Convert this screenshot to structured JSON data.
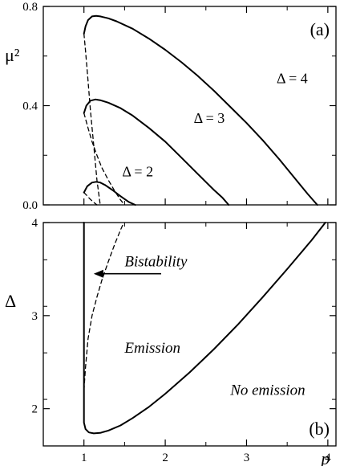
{
  "chart_data": [
    {
      "type": "line",
      "panel_label": "(a)",
      "xlim": [
        0.5,
        4.1
      ],
      "ylim": [
        0,
        0.8
      ],
      "ylabel": "μ²",
      "xlabel": "",
      "yticks": [
        {
          "value": 0.0,
          "label": "0.0"
        },
        {
          "value": 0.4,
          "label": "0.4"
        },
        {
          "value": 0.8,
          "label": "0.8"
        }
      ],
      "xticks": [
        1,
        2,
        3,
        4
      ],
      "minor_y_step": 0.2,
      "annotations": [
        {
          "text": "Δ = 2",
          "x": 1.47,
          "y": 0.115
        },
        {
          "text": "Δ = 3",
          "x": 2.35,
          "y": 0.33
        },
        {
          "text": "Δ = 4",
          "x": 3.37,
          "y": 0.49
        }
      ],
      "series": [
        {
          "name": "Δ = 4 stable",
          "style": "solid",
          "x": [
            1.0,
            1.02,
            1.05,
            1.1,
            1.15,
            1.2,
            1.3,
            1.4,
            1.6,
            1.8,
            2.0,
            2.2,
            2.4,
            2.6,
            2.8,
            3.0,
            3.2,
            3.4,
            3.6,
            3.75,
            3.87
          ],
          "y": [
            0.69,
            0.72,
            0.745,
            0.76,
            0.762,
            0.76,
            0.752,
            0.74,
            0.71,
            0.67,
            0.625,
            0.575,
            0.52,
            0.46,
            0.395,
            0.33,
            0.26,
            0.185,
            0.105,
            0.045,
            0.0
          ]
        },
        {
          "name": "Δ = 4 unstable",
          "style": "dashed",
          "x": [
            1.0,
            1.02,
            1.05,
            1.08,
            1.12,
            1.16,
            1.2
          ],
          "y": [
            0.69,
            0.62,
            0.5,
            0.38,
            0.24,
            0.1,
            0.0
          ]
        },
        {
          "name": "Δ = 3 stable",
          "style": "solid",
          "x": [
            1.0,
            1.03,
            1.08,
            1.14,
            1.2,
            1.3,
            1.45,
            1.6,
            1.8,
            2.0,
            2.2,
            2.4,
            2.6,
            2.7,
            2.78
          ],
          "y": [
            0.37,
            0.4,
            0.42,
            0.425,
            0.422,
            0.412,
            0.39,
            0.36,
            0.31,
            0.255,
            0.19,
            0.125,
            0.06,
            0.03,
            0.0
          ]
        },
        {
          "name": "Δ = 3 unstable",
          "style": "dashed",
          "x": [
            1.0,
            1.05,
            1.1,
            1.16,
            1.22,
            1.3,
            1.38,
            1.45,
            1.5
          ],
          "y": [
            0.37,
            0.31,
            0.255,
            0.2,
            0.15,
            0.1,
            0.055,
            0.02,
            0.0
          ]
        },
        {
          "name": "Δ = 2 stable",
          "style": "solid",
          "x": [
            1.0,
            1.04,
            1.1,
            1.15,
            1.2,
            1.26,
            1.35,
            1.45,
            1.55,
            1.63
          ],
          "y": [
            0.05,
            0.075,
            0.09,
            0.093,
            0.09,
            0.08,
            0.06,
            0.035,
            0.012,
            0.0
          ]
        },
        {
          "name": "Δ = 2 unstable",
          "style": "dashed",
          "x": [
            1.0,
            1.04,
            1.08,
            1.12,
            1.16
          ],
          "y": [
            0.05,
            0.036,
            0.022,
            0.01,
            0.0
          ]
        }
      ]
    },
    {
      "type": "line",
      "panel_label": "(b)",
      "xlim": [
        0.5,
        4.1
      ],
      "ylim": [
        1.6,
        4.0
      ],
      "xlabel": "p",
      "ylabel": "Δ",
      "xticks": [
        {
          "value": 1,
          "label": "1"
        },
        {
          "value": 2,
          "label": "2"
        },
        {
          "value": 3,
          "label": "3"
        },
        {
          "value": 4,
          "label": "4"
        }
      ],
      "yticks": [
        {
          "value": 2,
          "label": "2"
        },
        {
          "value": 3,
          "label": "3"
        },
        {
          "value": 4,
          "label": "4"
        }
      ],
      "minor_y_step": 0.5,
      "annotations": [
        {
          "text": "Bistability",
          "x": 1.5,
          "y": 3.53,
          "style": "italic"
        },
        {
          "text": "Emission",
          "x": 1.5,
          "y": 2.6,
          "style": "italic"
        },
        {
          "text": "No emission",
          "x": 2.8,
          "y": 2.15,
          "style": "italic"
        }
      ],
      "arrow": {
        "from": [
          1.95,
          3.45
        ],
        "to": [
          1.12,
          3.45
        ]
      },
      "series": [
        {
          "name": "boundary solid",
          "style": "solid",
          "x": [
            1.0,
            1.0,
            1.0,
            1.0,
            1.0,
            1.0,
            1.0,
            1.02,
            1.06,
            1.12,
            1.2,
            1.3,
            1.45,
            1.6,
            1.8,
            2.0,
            2.3,
            2.6,
            2.9,
            3.2,
            3.5,
            3.8,
            3.97
          ],
          "y": [
            4.0,
            3.5,
            3.0,
            2.5,
            2.2,
            2.0,
            1.85,
            1.78,
            1.745,
            1.735,
            1.74,
            1.765,
            1.82,
            1.9,
            2.02,
            2.16,
            2.39,
            2.64,
            2.91,
            3.2,
            3.5,
            3.81,
            4.0
          ]
        },
        {
          "name": "boundary dashed",
          "style": "dashed",
          "x": [
            1.0,
            1.02,
            1.05,
            1.1,
            1.16,
            1.22,
            1.3,
            1.38,
            1.45,
            1.49
          ],
          "y": [
            2.2,
            2.45,
            2.75,
            3.0,
            3.2,
            3.38,
            3.58,
            3.77,
            3.92,
            4.0
          ]
        }
      ]
    }
  ]
}
